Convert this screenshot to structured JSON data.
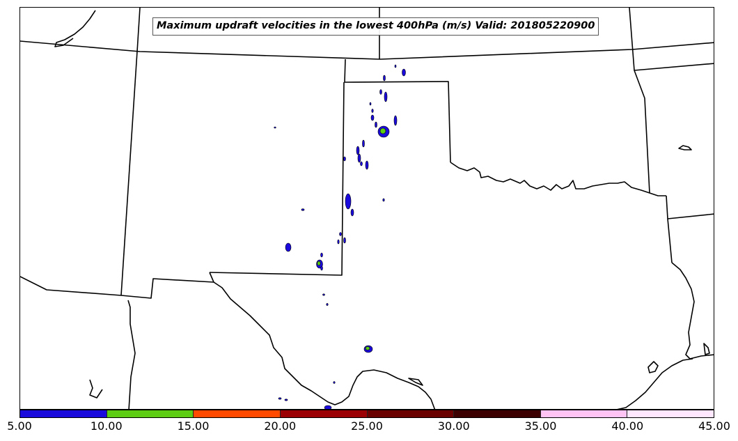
{
  "title": "Maximum updraft velocities in the lowest 400hPa (m/s) Valid: 201805220900",
  "colorbar": {
    "ticks": [
      "5.00",
      "10.00",
      "15.00",
      "20.00",
      "25.00",
      "30.00",
      "35.00",
      "40.00",
      "45.00"
    ],
    "colors": [
      "#1a0adc",
      "#5ccd12",
      "#ff4a00",
      "#9a0004",
      "#6a0000",
      "#3d0000",
      "#ffc4f4",
      "#ffe8ff"
    ]
  },
  "map": {
    "region": "Southern Great Plains (Texas, Oklahoma, New Mexico)",
    "features": [
      "state-borders",
      "coastline",
      "updraft-contours"
    ]
  }
}
